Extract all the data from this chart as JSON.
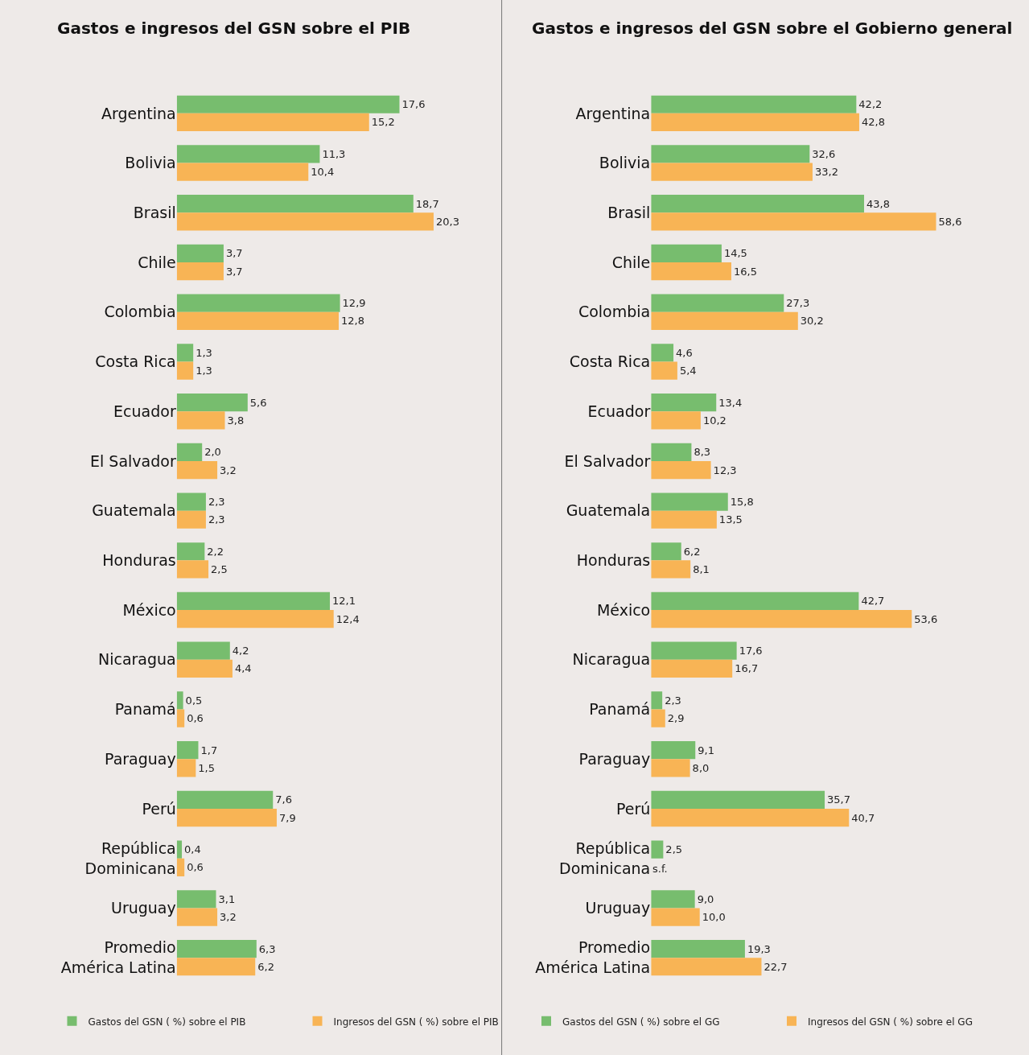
{
  "chart_data": [
    {
      "type": "bar",
      "orientation": "horizontal",
      "title": "Gastos e ingresos del GSN sobre el PIB",
      "legend": "bottom",
      "tick_labels": "y",
      "grid": false,
      "categories": [
        "Argentina",
        "Bolivia",
        "Brasil",
        "Chile",
        "Colombia",
        "Costa Rica",
        "Ecuador",
        "El Salvador",
        "Guatemala",
        "Honduras",
        "México",
        "Nicaragua",
        "Panamá",
        "Paraguay",
        "Perú",
        "República Dominicana",
        "Uruguay",
        "Promedio América Latina"
      ],
      "series": [
        {
          "name": "Gastos del GSN ( %) sobre el PIB",
          "color": "#77bd6e",
          "values": [
            17.6,
            11.3,
            18.7,
            3.7,
            12.9,
            1.3,
            5.6,
            2.0,
            2.3,
            2.2,
            12.1,
            4.2,
            0.5,
            1.7,
            7.6,
            0.4,
            3.1,
            6.3
          ],
          "value_labels": [
            "17,6",
            "11,3",
            "18,7",
            "3,7",
            "12,9",
            "1,3",
            "5,6",
            "2,0",
            "2,3",
            "2,2",
            "12,1",
            "4,2",
            "0,5",
            "1,7",
            "7,6",
            "0,4",
            "3,1",
            "6,3"
          ]
        },
        {
          "name": "Ingresos del GSN ( %) sobre el PIB",
          "color": "#f8b455",
          "values": [
            15.2,
            10.4,
            20.3,
            3.7,
            12.8,
            1.3,
            3.8,
            3.2,
            2.3,
            2.5,
            12.4,
            4.4,
            0.6,
            1.5,
            7.9,
            0.6,
            3.2,
            6.2
          ],
          "value_labels": [
            "15,2",
            "10,4",
            "20,3",
            "3,7",
            "12,8",
            "1,3",
            "3,8",
            "3,2",
            "2,3",
            "2,5",
            "12,4",
            "4,4",
            "0,6",
            "1,5",
            "7,9",
            "0,6",
            "3,2",
            "6,2"
          ]
        }
      ]
    },
    {
      "type": "bar",
      "orientation": "horizontal",
      "title": "Gastos e ingresos del GSN sobre el Gobierno general",
      "legend": "bottom",
      "tick_labels": "y",
      "grid": false,
      "categories": [
        "Argentina",
        "Bolivia",
        "Brasil",
        "Chile",
        "Colombia",
        "Costa Rica",
        "Ecuador",
        "El Salvador",
        "Guatemala",
        "Honduras",
        "México",
        "Nicaragua",
        "Panamá",
        "Paraguay",
        "Perú",
        "República Dominicana",
        "Uruguay",
        "Promedio América Latina"
      ],
      "series": [
        {
          "name": "Gastos del GSN ( %) sobre el GG",
          "color": "#77bd6e",
          "values": [
            42.2,
            32.6,
            43.8,
            14.5,
            27.3,
            4.6,
            13.4,
            8.3,
            15.8,
            6.2,
            42.7,
            17.6,
            2.3,
            9.1,
            35.7,
            2.5,
            9.0,
            19.3
          ],
          "value_labels": [
            "42,2",
            "32,6",
            "43,8",
            "14,5",
            "27,3",
            "4,6",
            "13,4",
            "8,3",
            "15,8",
            "6,2",
            "42,7",
            "17,6",
            "2,3",
            "9,1",
            "35,7",
            "2,5",
            "9,0",
            "19,3"
          ]
        },
        {
          "name": "Ingresos del GSN ( %) sobre el GG",
          "color": "#f8b455",
          "values": [
            42.8,
            33.2,
            58.6,
            16.5,
            30.2,
            5.4,
            10.2,
            12.3,
            13.5,
            8.1,
            53.6,
            16.7,
            2.9,
            8.0,
            40.7,
            null,
            10.0,
            22.7
          ],
          "value_labels": [
            "42,8",
            "33,2",
            "58,6",
            "16,5",
            "30,2",
            "5,4",
            "10,2",
            "12,3",
            "13,5",
            "8,1",
            "53,6",
            "16,7",
            "2,9",
            "8,0",
            "40,7",
            "s.f.",
            "10,0",
            "22,7"
          ]
        }
      ]
    }
  ]
}
